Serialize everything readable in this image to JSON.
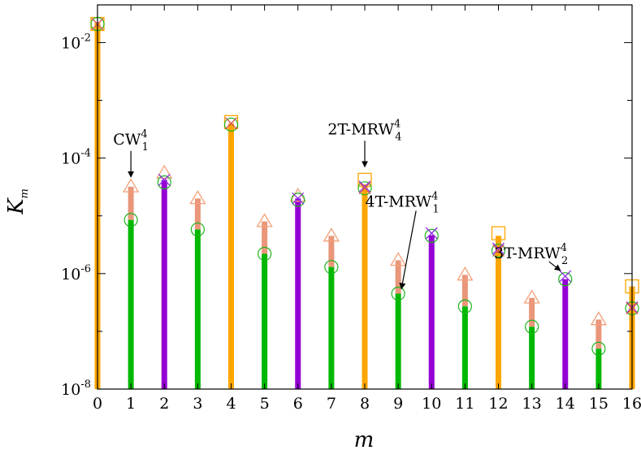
{
  "chart_data": {
    "type": "bar",
    "xlabel": "m",
    "ylabel": "K",
    "ylabel_sub": "m",
    "yscale": "log",
    "ylim": [
      1e-08,
      0.045
    ],
    "xlim": [
      0,
      16
    ],
    "x_ticks": [
      "0",
      "1",
      "2",
      "3",
      "4",
      "5",
      "6",
      "7",
      "8",
      "9",
      "10",
      "11",
      "12",
      "13",
      "14",
      "15",
      "16"
    ],
    "y_ticks": [
      {
        "base": "10",
        "exp": "-8",
        "value": 1e-08
      },
      {
        "base": "10",
        "exp": "-6",
        "value": 1e-06
      },
      {
        "base": "10",
        "exp": "-4",
        "value": 0.0001
      },
      {
        "base": "10",
        "exp": "-2",
        "value": 0.01
      }
    ],
    "colors": {
      "orange": "#ffa500",
      "purple": "#9400d3",
      "green": "#00b800",
      "salmon": "#e9967a",
      "triangle": "#f4a07a",
      "circle": "#1db31d",
      "square": "#ffa500",
      "cross_purple": "#8a2be2",
      "cross_red": "#e0604a"
    },
    "bars": [
      {
        "m": 0,
        "color": "orange",
        "value": 0.022
      },
      {
        "m": 1,
        "color": "green",
        "value": 8.5e-06,
        "salmon_top": 3.2e-05
      },
      {
        "m": 2,
        "color": "purple",
        "value": 4.2e-05
      },
      {
        "m": 3,
        "color": "green",
        "value": 5.8e-06,
        "salmon_top": 2e-05
      },
      {
        "m": 4,
        "color": "orange",
        "value": 0.0004
      },
      {
        "m": 5,
        "color": "green",
        "value": 2.2e-06,
        "salmon_top": 8e-06
      },
      {
        "m": 6,
        "color": "purple",
        "value": 2e-05
      },
      {
        "m": 7,
        "color": "green",
        "value": 1.3e-06,
        "salmon_top": 4.5e-06
      },
      {
        "m": 8,
        "color": "orange",
        "value": 3.5e-05
      },
      {
        "m": 9,
        "color": "green",
        "value": 4.5e-07,
        "salmon_top": 1.7e-06
      },
      {
        "m": 10,
        "color": "purple",
        "value": 4.6e-06
      },
      {
        "m": 11,
        "color": "green",
        "value": 2.7e-07,
        "salmon_top": 9.5e-07
      },
      {
        "m": 12,
        "color": "orange",
        "value": 4.5e-06
      },
      {
        "m": 13,
        "color": "green",
        "value": 1.2e-07,
        "salmon_top": 3.8e-07
      },
      {
        "m": 14,
        "color": "purple",
        "value": 8e-07
      },
      {
        "m": 15,
        "color": "green",
        "value": 5e-08,
        "salmon_top": 1.6e-07
      },
      {
        "m": 16,
        "color": "orange",
        "value": 6e-07
      }
    ],
    "triangles": [
      {
        "m": 1,
        "value": 3.2e-05
      },
      {
        "m": 2,
        "value": 5.5e-05
      },
      {
        "m": 3,
        "value": 2e-05
      },
      {
        "m": 5,
        "value": 8e-06
      },
      {
        "m": 6,
        "value": 2.2e-05
      },
      {
        "m": 7,
        "value": 4.5e-06
      },
      {
        "m": 9,
        "value": 1.7e-06
      },
      {
        "m": 11,
        "value": 9.5e-07
      },
      {
        "m": 13,
        "value": 3.8e-07
      },
      {
        "m": 15,
        "value": 1.6e-07
      }
    ],
    "circles": [
      {
        "m": 0,
        "value": 0.021
      },
      {
        "m": 1,
        "value": 8.5e-06
      },
      {
        "m": 2,
        "value": 3.8e-05
      },
      {
        "m": 3,
        "value": 5.8e-06
      },
      {
        "m": 4,
        "value": 0.00038
      },
      {
        "m": 5,
        "value": 2.2e-06
      },
      {
        "m": 6,
        "value": 1.9e-05
      },
      {
        "m": 7,
        "value": 1.3e-06
      },
      {
        "m": 8,
        "value": 3e-05
      },
      {
        "m": 9,
        "value": 4.5e-07
      },
      {
        "m": 10,
        "value": 4.5e-06
      },
      {
        "m": 11,
        "value": 2.7e-07
      },
      {
        "m": 12,
        "value": 2.5e-06
      },
      {
        "m": 13,
        "value": 1.2e-07
      },
      {
        "m": 14,
        "value": 8e-07
      },
      {
        "m": 15,
        "value": 5e-08
      },
      {
        "m": 16,
        "value": 2.5e-07
      }
    ],
    "squares": [
      {
        "m": 0,
        "value": 0.021
      },
      {
        "m": 4,
        "value": 0.00042
      },
      {
        "m": 8,
        "value": 4.2e-05
      },
      {
        "m": 12,
        "value": 5e-06
      },
      {
        "m": 16,
        "value": 6e-07
      }
    ],
    "crosses_purple": [
      {
        "m": 0,
        "value": 0.021
      },
      {
        "m": 2,
        "value": 4.2e-05
      },
      {
        "m": 4,
        "value": 0.0004
      },
      {
        "m": 6,
        "value": 2e-05
      },
      {
        "m": 8,
        "value": 3.2e-05
      },
      {
        "m": 10,
        "value": 5e-06
      },
      {
        "m": 12,
        "value": 2.7e-06
      },
      {
        "m": 14,
        "value": 9e-07
      },
      {
        "m": 16,
        "value": 2.6e-07
      }
    ],
    "crosses_red": [
      {
        "m": 0,
        "value": 0.021
      },
      {
        "m": 4,
        "value": 0.0004
      },
      {
        "m": 8,
        "value": 3e-05
      },
      {
        "m": 12,
        "value": 2.5e-06
      },
      {
        "m": 16,
        "value": 2.5e-07
      }
    ],
    "annotations": [
      {
        "text": "CW",
        "sup": "4",
        "sub": "1",
        "target_m": 1,
        "target_value": 3.2e-05,
        "anchor": "above"
      },
      {
        "text": "2T-MRW",
        "sup": "4",
        "sub": "4",
        "target_m": 8,
        "target_value": 4.8e-05,
        "anchor": "above"
      },
      {
        "text": "4T-MRW",
        "sup": "4",
        "sub": "1",
        "target_m": 9,
        "target_value": 4.5e-07,
        "anchor": "right"
      },
      {
        "text": "3T-MRW",
        "sup": "4",
        "sub": "2",
        "target_m": 14,
        "target_value": 9e-07,
        "anchor": "above"
      }
    ]
  }
}
